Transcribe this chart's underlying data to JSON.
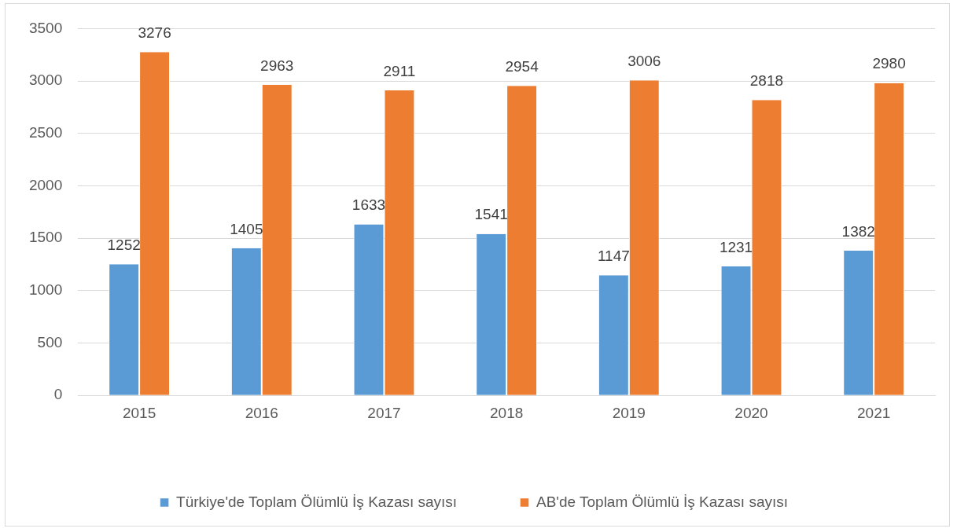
{
  "chart_data": {
    "type": "bar",
    "categories": [
      "2015",
      "2016",
      "2017",
      "2018",
      "2019",
      "2020",
      "2021"
    ],
    "series": [
      {
        "name": "Türkiye'de Toplam Ölümlü İş Kazası sayısı",
        "color": "#5b9bd5",
        "values": [
          1252,
          1405,
          1633,
          1541,
          1147,
          1231,
          1382
        ]
      },
      {
        "name": "AB'de Toplam Ölümlü İş Kazası sayısı",
        "color": "#ed7d31",
        "values": [
          3276,
          2963,
          2911,
          2954,
          3006,
          2818,
          2980
        ]
      }
    ],
    "ylim": [
      0,
      3500
    ],
    "yticks": [
      0,
      500,
      1000,
      1500,
      2000,
      2500,
      3000,
      3500
    ],
    "grid": "y",
    "legend": "bottom",
    "data_labels": true
  }
}
